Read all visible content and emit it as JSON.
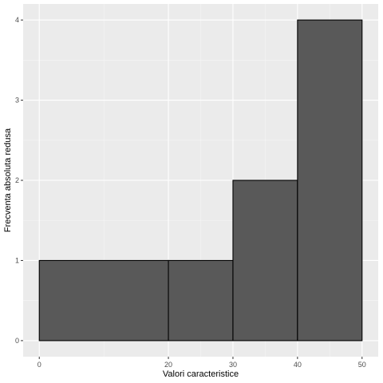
{
  "chart_data": {
    "type": "bar",
    "subtype": "histogram",
    "title": "",
    "xlabel": "Valori caracteristice",
    "ylabel": "Frecventa absoluta redusa",
    "bins": [
      {
        "from": 0,
        "to": 20,
        "value": 1
      },
      {
        "from": 20,
        "to": 30,
        "value": 1
      },
      {
        "from": 30,
        "to": 40,
        "value": 2
      },
      {
        "from": 40,
        "to": 50,
        "value": 4
      }
    ],
    "x_ticks": [
      0,
      20,
      30,
      40,
      50
    ],
    "y_ticks": [
      0,
      1,
      2,
      3,
      4
    ],
    "xlim": [
      -2.5,
      52.5
    ],
    "ylim": [
      -0.2,
      4.2
    ],
    "grid": true,
    "colors": {
      "panel_background": "#ebebeb",
      "grid_major": "#ffffff",
      "bar_fill": "#595959",
      "bar_outline": "#000000"
    }
  }
}
